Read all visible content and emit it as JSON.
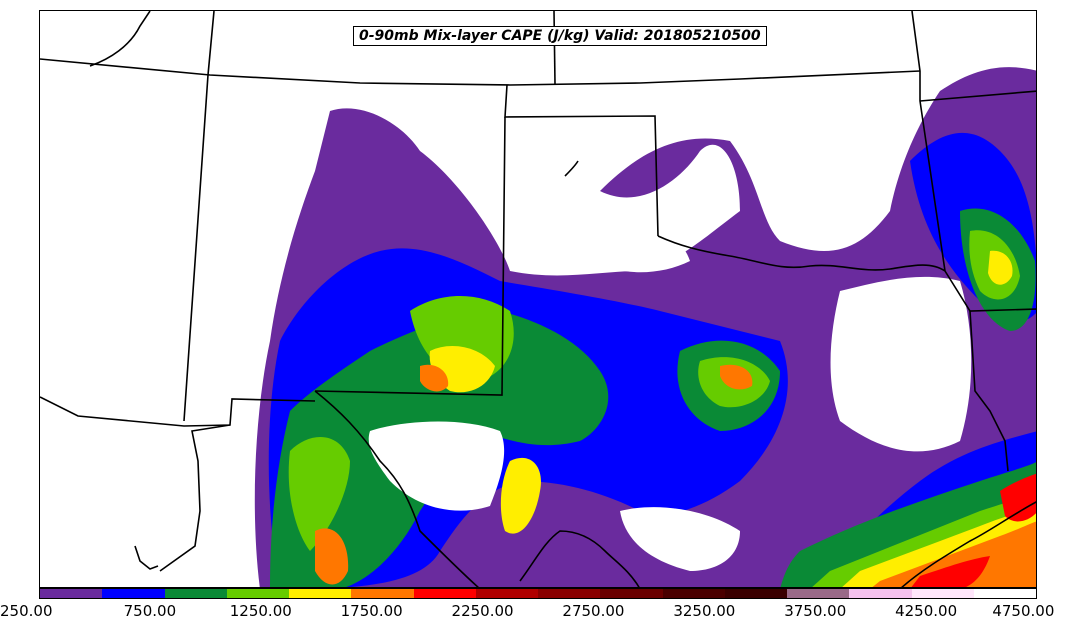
{
  "title": "0-90mb Mix-layer CAPE (J/kg) Valid: 201805210500",
  "colorbar": {
    "colors": [
      "#6a2b9e",
      "#0000ff",
      "#0a8a36",
      "#66cc00",
      "#ffee00",
      "#ff7700",
      "#ff0000",
      "#b00000",
      "#8a0000",
      "#6a0000",
      "#4a0000",
      "#3a0000",
      "#9a6a88",
      "#f5c2ee",
      "#ffe6fb",
      "#ffffff"
    ],
    "tick_labels": [
      "250.00",
      "750.00",
      "1250.00",
      "1750.00",
      "2250.00",
      "2750.00",
      "3250.00",
      "3750.00",
      "4250.00",
      "4750.00"
    ]
  },
  "legend_icons": [
    "colorbar"
  ]
}
